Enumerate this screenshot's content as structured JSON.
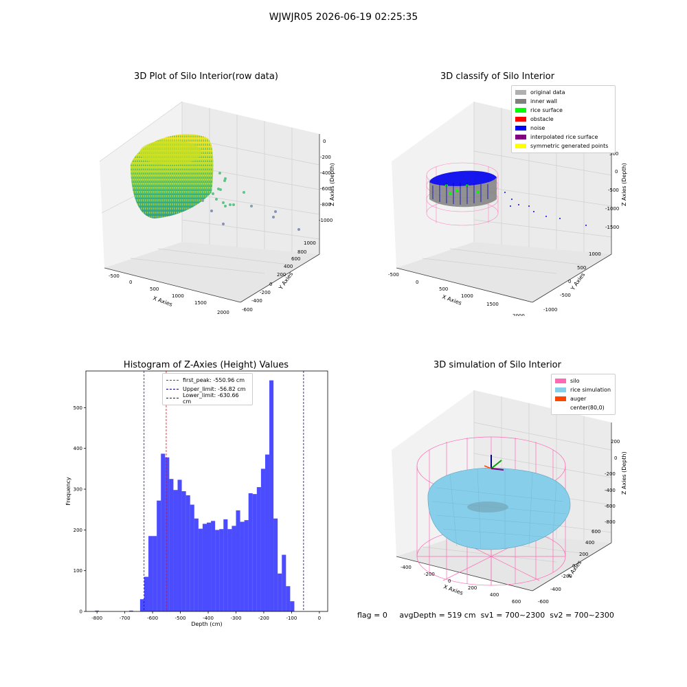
{
  "suptitle": "WJWJR05 2026-06-19 02:25:35",
  "footer": {
    "flag": "flag = 0",
    "avg": "avgDepth = 519 cm",
    "sv1": "sv1 = 700~2300",
    "sv2": "sv2 = 700~2300"
  },
  "chart_data": [
    {
      "type": "scatter",
      "title": "3D Plot of Silo Interior(row data)",
      "xlabel": "X Axies",
      "ylabel": "Y Axies",
      "zlabel": "Z Axies (Depth)",
      "xticks": [
        "-500",
        "0",
        "500",
        "1000",
        "1500",
        "2000"
      ],
      "yticks": [
        "-600",
        "-400",
        "-200",
        "0",
        "200",
        "400",
        "600",
        "800",
        "1000"
      ],
      "zticks": [
        "0",
        "-200",
        "-400",
        "-600",
        "-800",
        "-1000"
      ],
      "colormap": "viridis"
    },
    {
      "type": "scatter",
      "title": "3D classify of Silo Interior",
      "xlabel": "X Axies",
      "ylabel": "Y Axies",
      "zlabel": "Z Axies (Depth)",
      "xticks": [
        "-500",
        "0",
        "500",
        "1000",
        "1500",
        "2000"
      ],
      "yticks": [
        "-1000",
        "-500",
        "0",
        "500",
        "1000"
      ],
      "zticks": [
        "500",
        "0",
        "-500",
        "-1000",
        "-1500"
      ],
      "legend": [
        {
          "name": "original data",
          "color": "#b0b0b0"
        },
        {
          "name": "inner wall",
          "color": "#808080"
        },
        {
          "name": "rice surface",
          "color": "#00ff00"
        },
        {
          "name": "obstacle",
          "color": "#ff0000"
        },
        {
          "name": "noise",
          "color": "#0000ff"
        },
        {
          "name": "interpolated rice surface",
          "color": "#800080"
        },
        {
          "name": "symmetric generated points",
          "color": "#ffff00"
        }
      ]
    },
    {
      "type": "bar",
      "title": "Histogram of Z-Axies (Height) Values",
      "xlabel": "Depth (cm)",
      "ylabel": "Frequency",
      "xlim": [
        -840,
        30
      ],
      "ylim": [
        0,
        590
      ],
      "xticks": [
        -800,
        -700,
        -600,
        -500,
        -400,
        -300,
        -200,
        -100,
        0
      ],
      "yticks": [
        0,
        100,
        200,
        300,
        400,
        500
      ],
      "bin_start": -645,
      "bin_width": 15,
      "values": [
        30,
        85,
        185,
        185,
        272,
        387,
        378,
        325,
        298,
        323,
        295,
        285,
        262,
        228,
        203,
        215,
        218,
        222,
        200,
        202,
        226,
        202,
        210,
        248,
        220,
        224,
        290,
        288,
        305,
        350,
        385,
        567,
        228,
        93,
        139,
        62,
        25
      ],
      "outliers": [
        {
          "x": -800,
          "count": 2
        },
        {
          "x": -677,
          "count": 2
        }
      ],
      "bar_color": "#0000ff",
      "lines": [
        {
          "label": "first_peak: -550.96 cm",
          "x": -550.96,
          "color": "#ff0000"
        },
        {
          "label": "Upper_limit: -56.82 cm",
          "x": -56.82,
          "color": "#00008b"
        },
        {
          "label": "Lower_limit: -630.66 cm",
          "x": -630.66,
          "color": "#0000ff"
        }
      ]
    },
    {
      "type": "surface",
      "title": "3D simulation of Silo Interior",
      "xlabel": "X Axies",
      "ylabel": "Y Axies",
      "zlabel": "Z Axies (Depth)",
      "xticks": [
        "-400",
        "-200",
        "0",
        "200",
        "400",
        "600"
      ],
      "yticks": [
        "-600",
        "-400",
        "-200",
        "0",
        "200",
        "400",
        "600"
      ],
      "zticks": [
        "200",
        "0",
        "-200",
        "-400",
        "-600",
        "-800"
      ],
      "legend": [
        {
          "name": "silo",
          "color": "#ff69b4"
        },
        {
          "name": "rice simulation",
          "color": "#87ceeb"
        },
        {
          "name": "auger",
          "color": "#ff4500"
        },
        {
          "name": "center(80,0)",
          "color": "#ffffff"
        }
      ]
    }
  ]
}
